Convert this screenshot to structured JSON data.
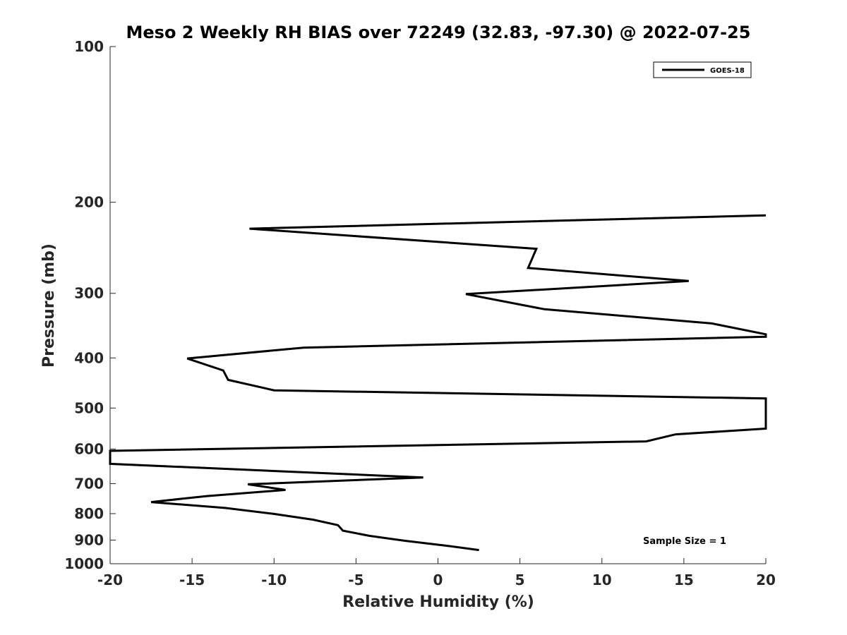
{
  "chart_data": {
    "type": "line",
    "title": "Meso 2 Weekly RH BIAS over 72249 (32.83, -97.30) @ 2022-07-25",
    "xlabel": "Relative Humidity (%)",
    "ylabel": "Pressure (mb)",
    "xlim": [
      -20,
      20
    ],
    "ylim": [
      100,
      1000
    ],
    "y_scale": "log",
    "y_reversed": true,
    "grid": false,
    "legend_position": "top-right",
    "x_ticks": [
      "-20",
      "-15",
      "-10",
      "-5",
      "0",
      "5",
      "10",
      "15",
      "20"
    ],
    "y_ticks": [
      "100",
      "200",
      "300",
      "400",
      "500",
      "600",
      "700",
      "800",
      "900",
      "1000"
    ],
    "annotation": "Sample Size = 1",
    "series": [
      {
        "name": "GOES-18",
        "color": "#000000",
        "points": [
          [
            20,
            212
          ],
          [
            -11.5,
            225
          ],
          [
            6.0,
            246
          ],
          [
            5.5,
            268
          ],
          [
            15.3,
            284
          ],
          [
            1.7,
            301
          ],
          [
            6.5,
            322
          ],
          [
            16.7,
            343
          ],
          [
            20,
            360
          ],
          [
            20,
            364
          ],
          [
            -8.2,
            382
          ],
          [
            -15.3,
            401
          ],
          [
            -13.1,
            423
          ],
          [
            -12.8,
            441
          ],
          [
            -10.0,
            462
          ],
          [
            20,
            479
          ],
          [
            20,
            548
          ],
          [
            14.5,
            562
          ],
          [
            12.7,
            580
          ],
          [
            -20,
            605
          ],
          [
            -20,
            641
          ],
          [
            -0.9,
            681
          ],
          [
            -11.6,
            702
          ],
          [
            -9.3,
            720
          ],
          [
            -14.1,
            740
          ],
          [
            -17.5,
            760
          ],
          [
            -13.0,
            780
          ],
          [
            -10.0,
            801
          ],
          [
            -7.6,
            822
          ],
          [
            -6.1,
            842
          ],
          [
            -5.8,
            863
          ],
          [
            -4.2,
            883
          ],
          [
            -2.0,
            903
          ],
          [
            0.4,
            922
          ],
          [
            2.5,
            941
          ]
        ]
      }
    ]
  }
}
